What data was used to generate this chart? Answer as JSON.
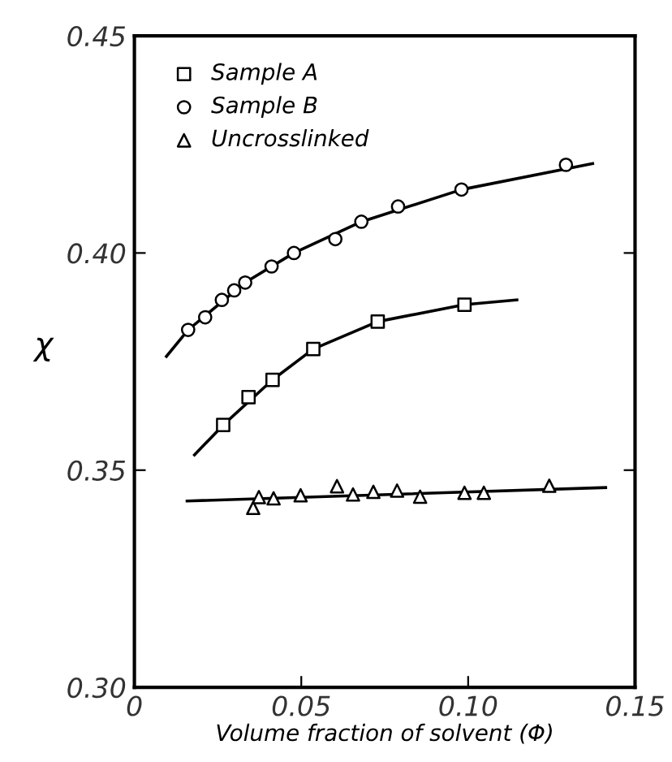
{
  "chart_data": {
    "type": "scatter",
    "xlabel": "Volume fraction of solvent (Φ)",
    "ylabel": "χ",
    "xlim": [
      0,
      0.15
    ],
    "ylim": [
      0.3,
      0.45
    ],
    "xticks": [
      0,
      0.05,
      {
        "value": 0.1,
        "label": "0.10"
      },
      0.15
    ],
    "yticks": [
      {
        "value": 0.3,
        "label": "0.30"
      },
      0.35,
      {
        "value": 0.4,
        "label": "0.40"
      },
      0.45
    ],
    "legend": "top left",
    "grid": false,
    "series": [
      {
        "name": "Sample A",
        "marker": "square",
        "color": "#000000",
        "x": [
          0.0266,
          0.0342,
          0.0414,
          0.0536,
          0.0729,
          0.0989
        ],
        "values": [
          0.3604,
          0.3668,
          0.3708,
          0.3779,
          0.3842,
          0.3881
        ]
      },
      {
        "name": "Sample B",
        "marker": "circle",
        "color": "#000000",
        "x": [
          0.0161,
          0.0212,
          0.0262,
          0.0299,
          0.0332,
          0.0411,
          0.0478,
          0.0602,
          0.068,
          0.079,
          0.098,
          0.1293
        ],
        "values": [
          0.3823,
          0.3852,
          0.3892,
          0.3914,
          0.3932,
          0.3969,
          0.4,
          0.4032,
          0.4072,
          0.4107,
          0.4146,
          0.4203
        ]
      },
      {
        "name": "Uncrosslinked",
        "marker": "triangle",
        "color": "#000000",
        "x": [
          0.0356,
          0.0373,
          0.0417,
          0.0498,
          0.0607,
          0.0655,
          0.0716,
          0.0787,
          0.0856,
          0.0989,
          0.1047,
          0.1243
        ],
        "values": [
          0.3413,
          0.3438,
          0.3435,
          0.3442,
          0.3463,
          0.3444,
          0.345,
          0.3453,
          0.3439,
          0.3448,
          0.3448,
          0.3464
        ]
      },
      {
        "type": "line",
        "line_style": "solid",
        "color": "#000000",
        "x": [
          0.018,
          0.0266,
          0.0414,
          0.0536,
          0.0729,
          0.0989,
          0.1146
        ],
        "values": [
          0.3535,
          0.3604,
          0.3708,
          0.3779,
          0.3842,
          0.3881,
          0.3892
        ]
      },
      {
        "type": "line",
        "line_style": "solid",
        "color": "#000000",
        "x": [
          0.0096,
          0.0161,
          0.0332,
          0.0478,
          0.068,
          0.098,
          0.1373
        ],
        "values": [
          0.3762,
          0.3823,
          0.3932,
          0.4,
          0.4072,
          0.4146,
          0.4206
        ]
      },
      {
        "type": "line",
        "line_style": "solid",
        "color": "#000000",
        "x": [
          0.0158,
          0.1412
        ],
        "values": [
          0.3429,
          0.346
        ]
      }
    ]
  }
}
